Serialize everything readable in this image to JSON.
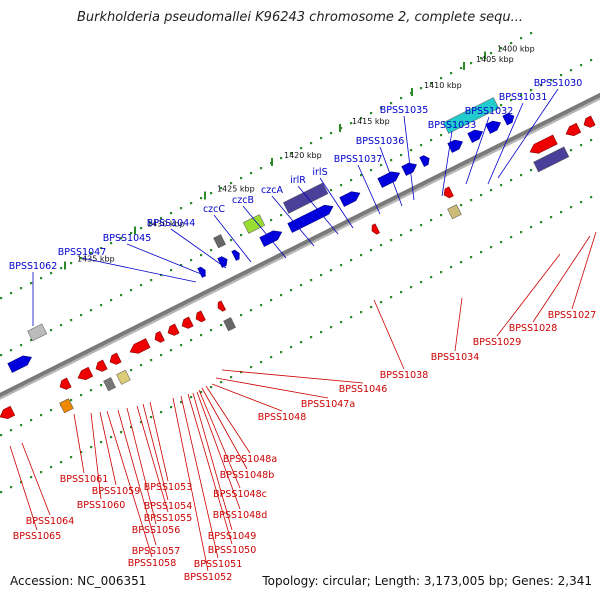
{
  "title": "Burkholderia pseudomallei K96243 chromosome 2, complete sequ...",
  "footer": {
    "accession": "Accession: NC_006351",
    "summary": "Topology: circular; Length: 3,173,005 bp; Genes: 2,341"
  },
  "colors": {
    "forward_label": "#0000cc",
    "reverse_label": "#cc0000",
    "forward_gene": "#0000dd",
    "reverse_gene": "#ee0000",
    "backbone": "#7a7a7a",
    "tick": "#2a8a2a"
  },
  "scale_ticks": [
    "1400 kbp",
    "1405 kbp",
    "1410 kbp",
    "1415 kbp",
    "1420 kbp",
    "1425 kbp",
    "1430 kbp",
    "1435 kbp"
  ],
  "forward_labels": [
    "BPSS1030",
    "BPSS1031",
    "BPSS1032",
    "BPSS1033",
    "BPSS1035",
    "BPSS1036",
    "BPSS1037",
    "irlS",
    "irlR",
    "czcA",
    "czcB",
    "czcC",
    "BPSS1044",
    "BPSS1045",
    "BPSS1047",
    "BPSS1062"
  ],
  "reverse_labels": [
    "BPSS1027",
    "BPSS1028",
    "BPSS1029",
    "BPSS1034",
    "BPSS1038",
    "BPSS1046",
    "BPSS1047a",
    "BPSS1048",
    "BPSS1048a",
    "BPSS1048b",
    "BPSS1048c",
    "BPSS1048d",
    "BPSS1049",
    "BPSS1050",
    "BPSS1051",
    "BPSS1052",
    "BPSS1053",
    "BPSS1054",
    "BPSS1055",
    "BPSS1056",
    "BPSS1057",
    "BPSS1058",
    "BPSS1059",
    "BPSS1060",
    "BPSS1061",
    "BPSS1064",
    "BPSS1065"
  ]
}
